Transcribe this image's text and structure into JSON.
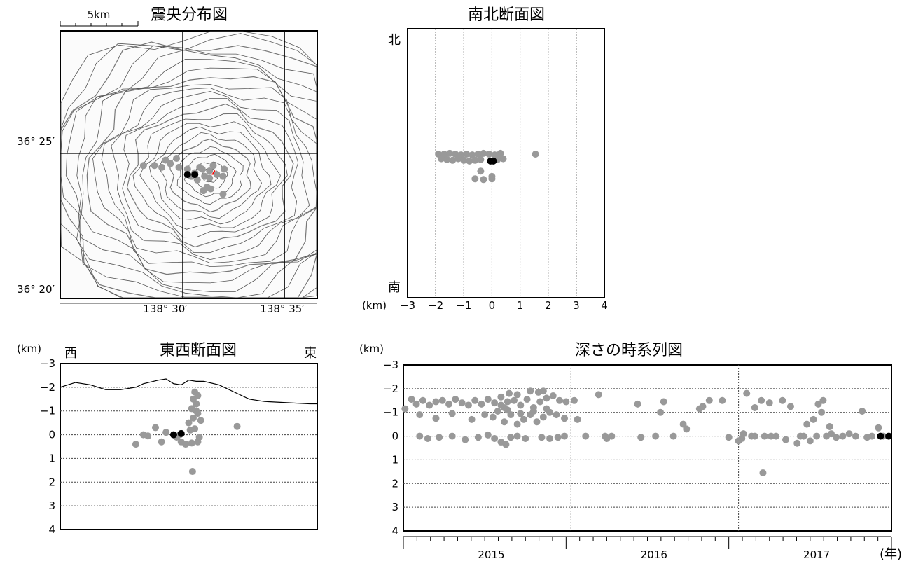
{
  "colors": {
    "event_past": "#999999",
    "event_recent": "#000000",
    "contour": "#555555",
    "summit": "#ff0000"
  },
  "chart_data": [
    {
      "id": "map",
      "type": "scatter",
      "title": "震央分布図",
      "scale_bar_label": "5km",
      "x_tick_labels": [
        "138° 30′",
        "138° 35′"
      ],
      "y_tick_labels": [
        "36° 25′",
        "36° 20′"
      ],
      "xlim": [
        138.4,
        138.61
      ],
      "ylim": [
        36.336,
        36.485
      ],
      "x_ticks": [
        138.5,
        138.5833
      ],
      "y_ticks": [
        36.4167,
        36.3333
      ],
      "past_events": [
        [
          138.49,
          36.411
        ],
        [
          138.497,
          36.409
        ],
        [
          138.504,
          36.408
        ],
        [
          138.51,
          36.406
        ],
        [
          138.516,
          36.408
        ],
        [
          138.522,
          36.407
        ],
        [
          138.528,
          36.405
        ],
        [
          138.514,
          36.409
        ],
        [
          138.518,
          36.404
        ],
        [
          138.525,
          36.41
        ],
        [
          138.533,
          36.404
        ],
        [
          138.507,
          36.404
        ],
        [
          138.512,
          36.402
        ],
        [
          138.522,
          36.403
        ],
        [
          138.534,
          36.408
        ],
        [
          138.477,
          36.41
        ],
        [
          138.483,
          36.409
        ],
        [
          138.486,
          36.413
        ],
        [
          138.495,
          36.414
        ],
        [
          138.517,
          36.396
        ],
        [
          138.523,
          36.397
        ],
        [
          138.52,
          36.398
        ],
        [
          138.533,
          36.394
        ],
        [
          138.468,
          36.41
        ]
      ],
      "recent_events": [
        [
          138.504,
          36.405
        ],
        [
          138.51,
          36.405
        ]
      ],
      "summit": [
        138.526,
        36.406
      ]
    },
    {
      "id": "ns",
      "type": "scatter",
      "title": "南北断面図",
      "unit": "(km)",
      "top_label": "北",
      "bottom_label": "南",
      "x_tick_labels": [
        "−3",
        "−2",
        "−1",
        "0",
        "1",
        "2",
        "3",
        "4"
      ],
      "xlim": [
        -3,
        4
      ],
      "past_events": [
        [
          -1.9,
          -1.4
        ],
        [
          -1.7,
          -1.4
        ],
        [
          -1.5,
          -1.45
        ],
        [
          -1.3,
          -1.4
        ],
        [
          -1.1,
          -1.35
        ],
        [
          -0.9,
          -1.4
        ],
        [
          -0.7,
          -1.35
        ],
        [
          -0.5,
          -1.4
        ],
        [
          -0.3,
          -1.45
        ],
        [
          -0.1,
          -1.4
        ],
        [
          0.1,
          -1.35
        ],
        [
          0.3,
          -1.45
        ],
        [
          -1.8,
          -1.1
        ],
        [
          -1.6,
          -1.05
        ],
        [
          -1.4,
          -1.0
        ],
        [
          -1.2,
          -1.1
        ],
        [
          -1.0,
          -1.0
        ],
        [
          -0.8,
          -0.95
        ],
        [
          -0.6,
          -1.0
        ],
        [
          -0.4,
          -1.05
        ],
        [
          0.2,
          -1.05
        ],
        [
          0.4,
          -1.1
        ],
        [
          -0.4,
          -0.3
        ],
        [
          0.0,
          0.05
        ],
        [
          -0.6,
          0.2
        ],
        [
          -0.3,
          0.25
        ],
        [
          0.0,
          0.2
        ],
        [
          1.55,
          -1.4
        ],
        [
          -1.2,
          -1.3
        ],
        [
          0.25,
          -1.3
        ]
      ],
      "recent_events": [
        [
          -0.05,
          -0.95
        ],
        [
          0.05,
          -0.95
        ]
      ]
    },
    {
      "id": "ew",
      "type": "scatter",
      "title": "東西断面図",
      "unit": "(km)",
      "left_label": "西",
      "right_label": "東",
      "y_tick_labels": [
        "−3",
        "−2",
        "−1",
        "0",
        "1",
        "2",
        "3",
        "4"
      ],
      "ylim": [
        -3,
        4
      ],
      "grid": true,
      "past_events": [
        [
          -3.5,
          0.4
        ],
        [
          -3.0,
          0.0
        ],
        [
          -2.7,
          0.05
        ],
        [
          -2.2,
          -0.3
        ],
        [
          -1.8,
          0.3
        ],
        [
          -1.5,
          -0.1
        ],
        [
          -0.8,
          0.1
        ],
        [
          -0.6,
          0.0
        ],
        [
          -0.5,
          0.3
        ],
        [
          -0.2,
          0.4
        ],
        [
          0.2,
          0.35
        ],
        [
          0.6,
          0.3
        ],
        [
          0.0,
          -0.5
        ],
        [
          0.3,
          -0.7
        ],
        [
          0.6,
          -0.9
        ],
        [
          0.2,
          -1.1
        ],
        [
          0.5,
          -1.3
        ],
        [
          0.3,
          -1.5
        ],
        [
          0.6,
          -1.65
        ],
        [
          0.4,
          -1.8
        ],
        [
          0.5,
          -1.0
        ],
        [
          0.8,
          -0.6
        ],
        [
          0.7,
          0.1
        ],
        [
          0.25,
          1.55
        ],
        [
          3.2,
          -0.35
        ],
        [
          0.1,
          -0.2
        ],
        [
          0.4,
          -0.25
        ]
      ],
      "recent_events": [
        [
          -1.0,
          0.0
        ],
        [
          -0.5,
          -0.05
        ]
      ],
      "topography": [
        [
          -8.5,
          -2.0
        ],
        [
          -7.5,
          -2.2
        ],
        [
          -6.5,
          -2.1
        ],
        [
          -5.5,
          -1.9
        ],
        [
          -4.5,
          -1.9
        ],
        [
          -3.5,
          -2.0
        ],
        [
          -3.0,
          -2.15
        ],
        [
          -2.0,
          -2.3
        ],
        [
          -1.5,
          -2.35
        ],
        [
          -1.0,
          -2.15
        ],
        [
          -0.5,
          -2.1
        ],
        [
          0.0,
          -2.3
        ],
        [
          0.5,
          -2.25
        ],
        [
          1.0,
          -2.25
        ],
        [
          2.0,
          -2.1
        ],
        [
          3.0,
          -1.8
        ],
        [
          4.0,
          -1.5
        ],
        [
          5.0,
          -1.4
        ],
        [
          6.5,
          -1.35
        ],
        [
          8.0,
          -1.3
        ],
        [
          8.5,
          -1.3
        ]
      ]
    },
    {
      "id": "ts",
      "type": "scatter",
      "title": "深さの時系列図",
      "unit": "(km)",
      "x_unit": "(年)",
      "x_tick_labels": [
        "2015",
        "2016",
        "2017"
      ],
      "y_tick_labels": [
        "−3",
        "−2",
        "−1",
        "0",
        "1",
        "2",
        "3",
        "4"
      ],
      "xlim": [
        2014.5,
        2017.5
      ],
      "ylim": [
        -3,
        4
      ],
      "grid": true,
      "past_events": [
        [
          2014.51,
          -1.15
        ],
        [
          2014.55,
          -1.55
        ],
        [
          2014.58,
          -1.35
        ],
        [
          2014.62,
          -1.5
        ],
        [
          2014.66,
          -1.3
        ],
        [
          2014.7,
          -1.45
        ],
        [
          2014.74,
          -1.5
        ],
        [
          2014.78,
          -1.35
        ],
        [
          2014.82,
          -1.55
        ],
        [
          2014.86,
          -1.4
        ],
        [
          2014.9,
          -1.3
        ],
        [
          2014.94,
          -1.5
        ],
        [
          2014.98,
          -1.35
        ],
        [
          2015.02,
          -1.55
        ],
        [
          2015.06,
          -1.4
        ],
        [
          2015.1,
          -1.3
        ],
        [
          2015.14,
          -1.45
        ],
        [
          2015.18,
          -1.5
        ],
        [
          2015.22,
          -1.3
        ],
        [
          2015.26,
          -1.55
        ],
        [
          2015.3,
          -1.2
        ],
        [
          2015.34,
          -1.45
        ],
        [
          2015.38,
          -1.6
        ],
        [
          2015.42,
          -1.7
        ],
        [
          2015.46,
          -1.5
        ],
        [
          2015.5,
          -1.45
        ],
        [
          2014.6,
          -0.9
        ],
        [
          2014.7,
          -0.75
        ],
        [
          2014.8,
          -0.95
        ],
        [
          2014.92,
          -0.7
        ],
        [
          2015.0,
          -0.9
        ],
        [
          2015.05,
          -0.8
        ],
        [
          2015.12,
          -0.6
        ],
        [
          2015.16,
          -0.9
        ],
        [
          2015.2,
          -0.5
        ],
        [
          2015.24,
          -0.7
        ],
        [
          2015.28,
          -0.9
        ],
        [
          2015.32,
          -0.6
        ],
        [
          2015.36,
          -0.8
        ],
        [
          2015.4,
          -1.0
        ],
        [
          2015.44,
          -0.9
        ],
        [
          2015.49,
          -0.75
        ],
        [
          2015.08,
          -1.05
        ],
        [
          2015.14,
          -1.1
        ],
        [
          2015.22,
          -0.95
        ],
        [
          2015.3,
          -1.05
        ],
        [
          2015.38,
          -1.15
        ],
        [
          2015.15,
          -1.8
        ],
        [
          2015.2,
          -1.75
        ],
        [
          2015.28,
          -1.9
        ],
        [
          2015.36,
          -1.9
        ],
        [
          2015.33,
          -1.85
        ],
        [
          2015.1,
          -1.65
        ],
        [
          2015.12,
          -1.2
        ],
        [
          2014.6,
          0.0
        ],
        [
          2014.65,
          0.1
        ],
        [
          2014.72,
          0.05
        ],
        [
          2014.8,
          0.0
        ],
        [
          2014.88,
          0.15
        ],
        [
          2014.96,
          0.05
        ],
        [
          2015.02,
          -0.05
        ],
        [
          2015.06,
          0.1
        ],
        [
          2015.1,
          0.25
        ],
        [
          2015.13,
          0.35
        ],
        [
          2015.16,
          0.05
        ],
        [
          2015.2,
          0.0
        ],
        [
          2015.25,
          0.1
        ],
        [
          2015.35,
          0.05
        ],
        [
          2015.4,
          0.1
        ],
        [
          2015.45,
          0.05
        ],
        [
          2015.49,
          0.0
        ],
        [
          2015.55,
          -1.5
        ],
        [
          2015.57,
          -0.7
        ],
        [
          2015.62,
          0.0
        ],
        [
          2015.7,
          -1.75
        ],
        [
          2015.74,
          0.0
        ],
        [
          2015.75,
          0.1
        ],
        [
          2015.78,
          0.0
        ],
        [
          2015.94,
          -1.35
        ],
        [
          2015.96,
          0.05
        ],
        [
          2016.05,
          0.0
        ],
        [
          2016.08,
          -1.0
        ],
        [
          2016.1,
          -1.45
        ],
        [
          2016.16,
          0.0
        ],
        [
          2016.22,
          -0.5
        ],
        [
          2016.24,
          -0.3
        ],
        [
          2016.32,
          -1.15
        ],
        [
          2016.34,
          -1.25
        ],
        [
          2016.38,
          -1.5
        ],
        [
          2016.46,
          -1.5
        ],
        [
          2016.5,
          0.05
        ],
        [
          2016.61,
          -1.8
        ],
        [
          2016.64,
          0.0
        ],
        [
          2016.66,
          -1.2
        ],
        [
          2016.7,
          -1.5
        ],
        [
          2016.72,
          0.0
        ],
        [
          2016.75,
          -1.4
        ],
        [
          2016.58,
          0.1
        ],
        [
          2016.56,
          0.2
        ],
        [
          2016.59,
          -0.1
        ],
        [
          2016.66,
          0.0
        ],
        [
          2016.71,
          1.55
        ],
        [
          2016.76,
          0.0
        ],
        [
          2016.83,
          -1.5
        ],
        [
          2016.85,
          0.15
        ],
        [
          2016.88,
          -1.25
        ],
        [
          2016.92,
          0.3
        ],
        [
          2016.94,
          0.0
        ],
        [
          2016.98,
          -0.5
        ],
        [
          2017.02,
          -0.7
        ],
        [
          2017.05,
          -1.35
        ],
        [
          2017.08,
          -1.5
        ],
        [
          2017.04,
          0.0
        ],
        [
          2017.1,
          0.0
        ],
        [
          2017.12,
          -0.4
        ],
        [
          2017.16,
          0.05
        ],
        [
          2017.2,
          0.0
        ],
        [
          2017.24,
          -0.1
        ],
        [
          2017.28,
          0.0
        ],
        [
          2017.32,
          -1.05
        ],
        [
          2017.35,
          0.05
        ],
        [
          2017.38,
          0.0
        ],
        [
          2017.42,
          -0.35
        ],
        [
          2017.45,
          0.0
        ],
        [
          2017.07,
          -1.0
        ],
        [
          2017.13,
          -0.1
        ],
        [
          2016.96,
          0.0
        ],
        [
          2017.0,
          0.2
        ],
        [
          2016.79,
          0.0
        ]
      ],
      "recent_events": [
        [
          2017.45,
          0.0
        ],
        [
          2017.5,
          0.0
        ]
      ]
    }
  ]
}
